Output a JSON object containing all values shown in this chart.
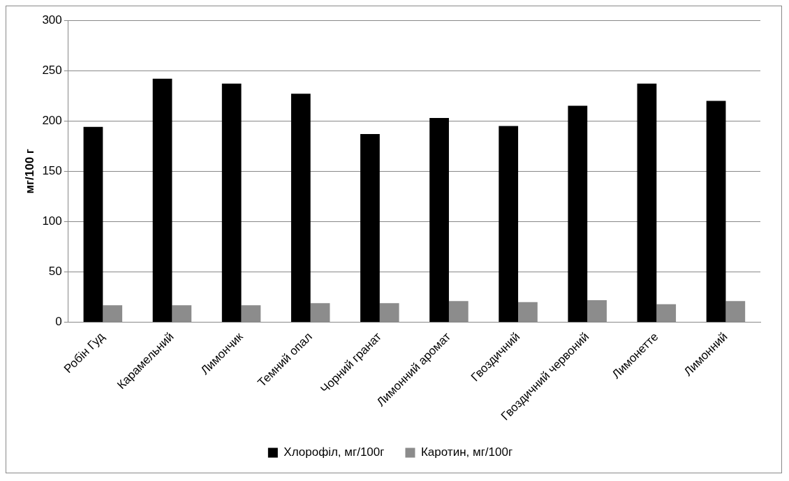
{
  "chart_data": {
    "type": "bar",
    "ylabel": "мг/100 г",
    "categories": [
      "Робін Гуд",
      "Карамельний",
      "Лимончик",
      "Темний опал",
      "Чорний гранат",
      "Лимонний аромат",
      "Гвоздичний",
      "Гвоздичний червоний",
      "Лимонетте",
      "Лимонний"
    ],
    "series": [
      {
        "name": "Хлорофіл, мг/100г",
        "color": "#000000",
        "values": [
          194,
          242,
          237,
          227,
          187,
          203,
          195,
          215,
          237,
          220
        ]
      },
      {
        "name": "Каротин, мг/100г",
        "color": "#8c8c8c",
        "values": [
          17,
          17,
          17,
          19,
          19,
          21,
          20,
          22,
          18,
          21
        ]
      }
    ],
    "ylim": [
      0,
      300
    ],
    "yticks": [
      0,
      50,
      100,
      150,
      200,
      250,
      300
    ],
    "grid": "y",
    "legend": "bottom"
  }
}
